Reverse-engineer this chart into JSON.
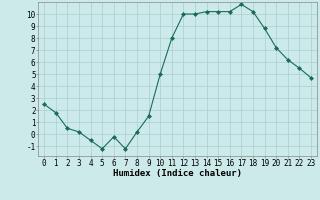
{
  "x": [
    0,
    1,
    2,
    3,
    4,
    5,
    6,
    7,
    8,
    9,
    10,
    11,
    12,
    13,
    14,
    15,
    16,
    17,
    18,
    19,
    20,
    21,
    22,
    23
  ],
  "y": [
    2.5,
    1.8,
    0.5,
    0.2,
    -0.5,
    -1.2,
    -0.2,
    -1.2,
    0.2,
    1.5,
    5.0,
    8.0,
    10.0,
    10.0,
    10.2,
    10.2,
    10.2,
    10.8,
    10.2,
    8.8,
    7.2,
    6.2,
    5.5,
    4.7
  ],
  "line_color": "#1a6b5a",
  "marker": "D",
  "marker_size": 2.0,
  "bg_color": "#cceaea",
  "grid_color": "#aacece",
  "xlabel": "Humidex (Indice chaleur)",
  "xlim": [
    -0.5,
    23.5
  ],
  "ylim": [
    -1.8,
    11.0
  ],
  "xticks": [
    0,
    1,
    2,
    3,
    4,
    5,
    6,
    7,
    8,
    9,
    10,
    11,
    12,
    13,
    14,
    15,
    16,
    17,
    18,
    19,
    20,
    21,
    22,
    23
  ],
  "yticks": [
    -1,
    0,
    1,
    2,
    3,
    4,
    5,
    6,
    7,
    8,
    9,
    10
  ],
  "xlabel_fontsize": 6.5,
  "tick_fontsize": 5.5
}
